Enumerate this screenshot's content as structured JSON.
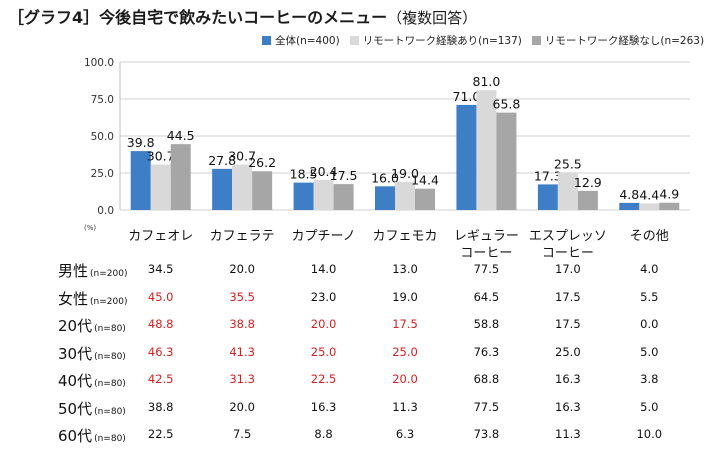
{
  "title": "［グラフ4］今後自宅で飲みたいコーヒーのメニュー",
  "subtitle": "（複数回答）",
  "colors": {
    "series1": "#3d7ec7",
    "series2": "#d9d9d9",
    "series3": "#a6a6a6",
    "highlight": "#d42020"
  },
  "chart_data": {
    "type": "bar",
    "categories": [
      "カフェオレ",
      "カフェラテ",
      "カプチーノ",
      "カフェモカ",
      "レギュラー\nコーヒー",
      "エスプレッソ\nコーヒー",
      "その他"
    ],
    "series": [
      {
        "name": "全体(n=400)",
        "values": [
          39.8,
          27.8,
          18.5,
          16.0,
          71.0,
          17.3,
          4.8
        ]
      },
      {
        "name": "リモートワーク経験あり(n=137)",
        "values": [
          30.7,
          30.7,
          20.4,
          19.0,
          81.0,
          25.5,
          4.4
        ]
      },
      {
        "name": "リモートワーク経験なし(n=263)",
        "values": [
          44.5,
          26.2,
          17.5,
          14.4,
          65.8,
          12.9,
          4.9
        ]
      }
    ],
    "ylim": [
      0,
      100
    ],
    "yticks": [
      "0.0",
      "25.0",
      "50.0",
      "75.0",
      "100.0"
    ],
    "unit_label": "(%)",
    "legend_position": "top-right"
  },
  "table": {
    "rows": [
      {
        "label": "男性",
        "n": "(n=200)",
        "values": [
          "34.5",
          "20.0",
          "14.0",
          "13.0",
          "77.5",
          "17.0",
          "4.0"
        ],
        "highlight": [
          false,
          false,
          false,
          false,
          false,
          false,
          false
        ]
      },
      {
        "label": "女性",
        "n": "(n=200)",
        "values": [
          "45.0",
          "35.5",
          "23.0",
          "19.0",
          "64.5",
          "17.5",
          "5.5"
        ],
        "highlight": [
          true,
          true,
          false,
          false,
          false,
          false,
          false
        ]
      },
      {
        "label": "20代",
        "n": "(n=80)",
        "values": [
          "48.8",
          "38.8",
          "20.0",
          "17.5",
          "58.8",
          "17.5",
          "0.0"
        ],
        "highlight": [
          true,
          true,
          true,
          true,
          false,
          false,
          false
        ]
      },
      {
        "label": "30代",
        "n": "(n=80)",
        "values": [
          "46.3",
          "41.3",
          "25.0",
          "25.0",
          "76.3",
          "25.0",
          "5.0"
        ],
        "highlight": [
          true,
          true,
          true,
          true,
          false,
          false,
          false
        ]
      },
      {
        "label": "40代",
        "n": "(n=80)",
        "values": [
          "42.5",
          "31.3",
          "22.5",
          "20.0",
          "68.8",
          "16.3",
          "3.8"
        ],
        "highlight": [
          true,
          true,
          true,
          true,
          false,
          false,
          false
        ]
      },
      {
        "label": "50代",
        "n": "(n=80)",
        "values": [
          "38.8",
          "20.0",
          "16.3",
          "11.3",
          "77.5",
          "16.3",
          "5.0"
        ],
        "highlight": [
          false,
          false,
          false,
          false,
          false,
          false,
          false
        ]
      },
      {
        "label": "60代",
        "n": "(n=80)",
        "values": [
          "22.5",
          "7.5",
          "8.8",
          "6.3",
          "73.8",
          "11.3",
          "10.0"
        ],
        "highlight": [
          false,
          false,
          false,
          false,
          false,
          false,
          false
        ]
      }
    ]
  }
}
